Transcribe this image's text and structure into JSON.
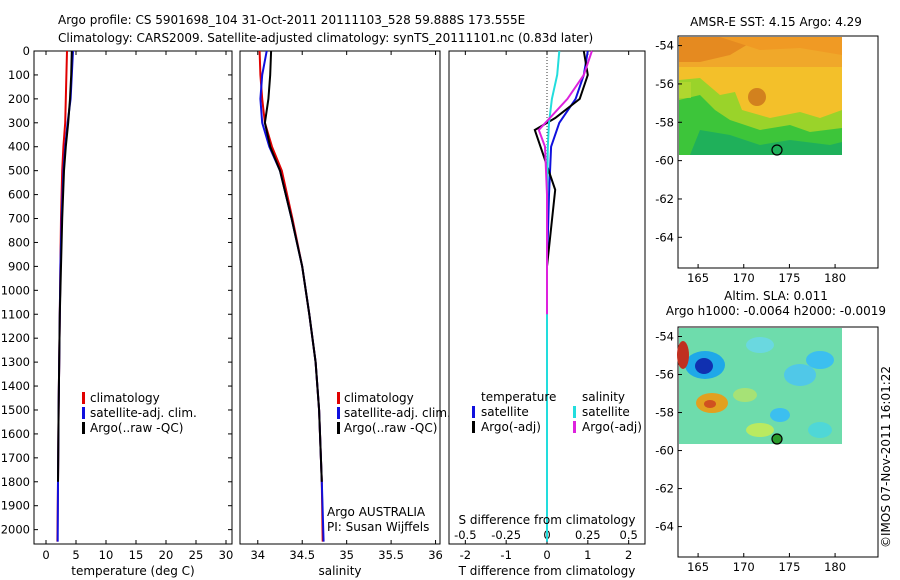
{
  "header": {
    "line1": "Argo profile: CS 5901698_104 31-Oct-2011 20111103_528 59.888S 173.555E",
    "line2": "Climatology: CARS2009. Satellite-adjusted climatology: synTS_20111101.nc (0.83d later)"
  },
  "colors": {
    "climatology": "#e00000",
    "satellite": "#1010dd",
    "argo": "#000000",
    "sat_s": "#22dddd",
    "argo_s": "#dd22dd"
  },
  "depth_ticks": [
    "0",
    "100",
    "200",
    "300",
    "400",
    "500",
    "600",
    "700",
    "800",
    "900",
    "1000",
    "1100",
    "1200",
    "1300",
    "1400",
    "1500",
    "1600",
    "1700",
    "1800",
    "1900",
    "2000"
  ],
  "chart_data": [
    {
      "type": "line",
      "id": "temperature",
      "xlabel": "temperature (deg C)",
      "ylabel": "",
      "xlim": [
        -2,
        31
      ],
      "ylim": [
        2060,
        0
      ],
      "xticks": [
        "0",
        "5",
        "10",
        "15",
        "20",
        "25",
        "30"
      ],
      "legend": [
        "climatology",
        "satellite-adj. clim.",
        "Argo(..raw -QC)"
      ],
      "series": [
        {
          "name": "climatology",
          "x": [
            3.5,
            3.4,
            3.3,
            3.2,
            2.9,
            2.7,
            2.5,
            2.4,
            2.3,
            2.2,
            2.1,
            2.0,
            1.9
          ],
          "y": [
            0,
            100,
            200,
            300,
            400,
            500,
            700,
            900,
            1100,
            1300,
            1500,
            1800,
            2050
          ]
        },
        {
          "name": "satellite-adj. clim.",
          "x": [
            4.5,
            4.3,
            4.1,
            3.6,
            3.2,
            2.9,
            2.6,
            2.4,
            2.3,
            2.2,
            2.1,
            2.0,
            1.95
          ],
          "y": [
            0,
            100,
            200,
            300,
            400,
            500,
            700,
            900,
            1100,
            1300,
            1500,
            1800,
            2050
          ]
        },
        {
          "name": "Argo(..raw -QC)",
          "x": [
            4.3,
            4.2,
            4.0,
            3.7,
            3.3,
            3.0,
            2.7,
            2.5,
            2.3,
            2.2,
            2.1,
            2.0
          ],
          "y": [
            0,
            100,
            200,
            300,
            400,
            500,
            700,
            900,
            1100,
            1300,
            1500,
            1800
          ]
        }
      ]
    },
    {
      "type": "line",
      "id": "salinity",
      "xlabel": "salinity",
      "ylabel": "",
      "xlim": [
        33.8,
        36.05
      ],
      "ylim": [
        2060,
        0
      ],
      "xticks": [
        "34",
        "34.5",
        "35",
        "35.5",
        "36"
      ],
      "legend": [
        "climatology",
        "satellite-adj. clim.",
        "Argo(..raw -QC)"
      ],
      "annotation": [
        "Argo AUSTRALIA",
        "PI: Susan Wijffels"
      ],
      "series": [
        {
          "name": "climatology",
          "x": [
            34.02,
            34.03,
            34.05,
            34.08,
            34.16,
            34.27,
            34.39,
            34.5,
            34.58,
            34.65,
            34.69,
            34.72,
            34.73
          ],
          "y": [
            0,
            100,
            200,
            300,
            400,
            500,
            700,
            900,
            1100,
            1300,
            1500,
            1800,
            2050
          ]
        },
        {
          "name": "satellite-adj. clim.",
          "x": [
            34.1,
            34.05,
            34.03,
            34.05,
            34.13,
            34.25,
            34.38,
            34.5,
            34.58,
            34.65,
            34.69,
            34.72,
            34.74
          ],
          "y": [
            0,
            100,
            200,
            300,
            400,
            500,
            700,
            900,
            1100,
            1300,
            1500,
            1800,
            2050
          ]
        },
        {
          "name": "Argo(..raw -QC)",
          "x": [
            34.15,
            34.14,
            34.12,
            34.08,
            34.14,
            34.25,
            34.38,
            34.5,
            34.58,
            34.65,
            34.69,
            34.72
          ],
          "y": [
            0,
            100,
            200,
            300,
            400,
            500,
            700,
            900,
            1100,
            1300,
            1500,
            1800
          ]
        }
      ]
    },
    {
      "type": "line",
      "id": "difference",
      "xlabel": "T difference from climatology",
      "xlabel2": "S difference from climatology",
      "xlim": [
        -2.4,
        2.4
      ],
      "ylim": [
        2060,
        0
      ],
      "xticks": [
        "-2",
        "-1",
        "0",
        "1",
        "2"
      ],
      "xticks2": [
        "-0.5",
        "-0.25",
        "0",
        "0.25",
        "0.5"
      ],
      "legend_titles": [
        "temperature",
        "salinity"
      ],
      "legend": [
        "satellite",
        "Argo(-adj)",
        "satellite",
        "Argo(-adj)"
      ],
      "series": [
        {
          "name": "temperature satellite",
          "x": [
            1.0,
            0.9,
            0.7,
            0.3,
            0.1,
            0.05,
            0.0,
            0.0,
            0.0,
            0.0
          ],
          "y": [
            0,
            100,
            200,
            300,
            400,
            600,
            900,
            1200,
            1600,
            2050
          ]
        },
        {
          "name": "temperature Argo(-adj)",
          "x": [
            0.9,
            1.0,
            0.8,
            0.2,
            -0.3,
            0.2,
            0.0,
            0.0,
            0.0
          ],
          "y": [
            0,
            100,
            200,
            280,
            330,
            580,
            900,
            1400,
            1800
          ]
        },
        {
          "name": "salinity satellite",
          "x": [
            0.3,
            0.25,
            0.12,
            0.05,
            0.02,
            0.0,
            0.0,
            0.0,
            0.0
          ],
          "y": [
            0,
            100,
            200,
            300,
            400,
            700,
            1000,
            1500,
            2050
          ]
        },
        {
          "name": "salinity Argo(-adj)",
          "x": [
            1.1,
            0.9,
            0.5,
            -0.2,
            -0.05,
            0.0,
            0.0,
            0.0
          ],
          "y": [
            0,
            100,
            200,
            330,
            400,
            600,
            900,
            1100
          ]
        }
      ]
    }
  ],
  "maps": [
    {
      "title": "AMSR-E SST: 4.15 Argo: 4.29",
      "subtitle": "",
      "yticks": [
        "-54",
        "-56",
        "-58",
        "-60",
        "-62",
        "-64"
      ],
      "xticks": [
        "165",
        "170",
        "175",
        "180"
      ]
    },
    {
      "title": "Altim. SLA: 0.011",
      "subtitle": "Argo h1000: -0.0064 h2000: -0.0019",
      "yticks": [
        "-54",
        "-56",
        "-58",
        "-60",
        "-62",
        "-64"
      ],
      "xticks": [
        "165",
        "170",
        "175",
        "180"
      ]
    }
  ],
  "credit": "©IMOS 07-Nov-2011 16:01:22"
}
